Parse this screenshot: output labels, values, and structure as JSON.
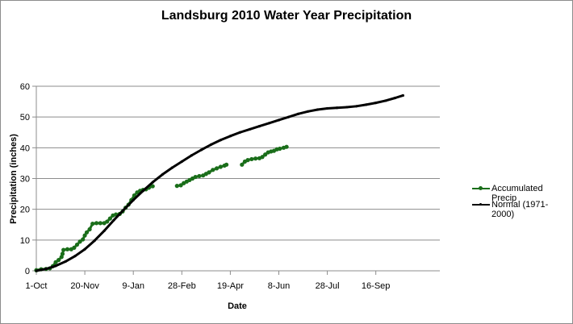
{
  "chart_data": {
    "type": "line",
    "title": "Landsburg 2010 Water Year Precipitation",
    "xlabel": "Date",
    "ylabel": "Precipitation (inches)",
    "x_unit": "days since 1-Oct",
    "xlim": [
      0,
      416
    ],
    "ylim": [
      0,
      60
    ],
    "x_ticks": [
      {
        "label": "1-Oct",
        "day": 0
      },
      {
        "label": "20-Nov",
        "day": 50
      },
      {
        "label": "9-Jan",
        "day": 100
      },
      {
        "label": "28-Feb",
        "day": 150
      },
      {
        "label": "19-Apr",
        "day": 200
      },
      {
        "label": "8-Jun",
        "day": 250
      },
      {
        "label": "28-Jul",
        "day": 300
      },
      {
        "label": "16-Sep",
        "day": 350
      }
    ],
    "y_ticks": [
      0,
      10,
      20,
      30,
      40,
      50,
      60
    ],
    "grid": "horizontal",
    "legend_position": "right",
    "series": [
      {
        "name": "Accumulated Precip",
        "color": "#1a6e1a",
        "segments": [
          [
            [
              0,
              0.2
            ],
            [
              5,
              0.5
            ],
            [
              10,
              0.6
            ],
            [
              14,
              0.8
            ],
            [
              17,
              1.5
            ],
            [
              20,
              2.8
            ],
            [
              23,
              3.5
            ],
            [
              26,
              4.5
            ],
            [
              27,
              5.5
            ],
            [
              28,
              6.8
            ],
            [
              32,
              7.0
            ],
            [
              36,
              7.0
            ],
            [
              39,
              7.5
            ],
            [
              42,
              8.5
            ],
            [
              45,
              9.5
            ],
            [
              48,
              10.2
            ],
            [
              50,
              11.5
            ],
            [
              52,
              12.5
            ],
            [
              55,
              13.5
            ],
            [
              58,
              15.3
            ],
            [
              62,
              15.5
            ],
            [
              66,
              15.5
            ],
            [
              70,
              15.5
            ],
            [
              73,
              16.0
            ],
            [
              76,
              17.0
            ],
            [
              79,
              18.0
            ],
            [
              82,
              18.3
            ],
            [
              86,
              18.5
            ],
            [
              89,
              19.3
            ],
            [
              92,
              20.5
            ],
            [
              95,
              21.5
            ],
            [
              98,
              23.0
            ],
            [
              101,
              24.5
            ],
            [
              104,
              25.5
            ],
            [
              107,
              26.0
            ],
            [
              110,
              26.3
            ],
            [
              113,
              26.5
            ],
            [
              116,
              27.0
            ],
            [
              120,
              27.5
            ]
          ],
          [
            [
              145,
              27.6
            ],
            [
              149,
              27.8
            ],
            [
              152,
              28.5
            ],
            [
              155,
              29.0
            ],
            [
              158,
              29.5
            ],
            [
              161,
              30.0
            ],
            [
              164,
              30.5
            ],
            [
              168,
              30.8
            ],
            [
              172,
              31.0
            ],
            [
              175,
              31.5
            ]
          ],
          [
            [
              178,
              32.0
            ],
            [
              182,
              32.8
            ],
            [
              186,
              33.3
            ],
            [
              190,
              33.8
            ],
            [
              194,
              34.2
            ],
            [
              196,
              34.5
            ]
          ],
          [
            [
              212,
              34.5
            ],
            [
              215,
              35.5
            ],
            [
              218,
              36.0
            ],
            [
              222,
              36.3
            ],
            [
              226,
              36.5
            ],
            [
              230,
              36.6
            ],
            [
              233,
              37.0
            ],
            [
              236,
              37.8
            ],
            [
              239,
              38.5
            ],
            [
              242,
              38.8
            ],
            [
              245,
              39.0
            ]
          ],
          [
            [
              248,
              39.5
            ],
            [
              251,
              39.7
            ],
            [
              255,
              40.0
            ],
            [
              258,
              40.3
            ]
          ]
        ]
      },
      {
        "name": "Normal (1971-2000)",
        "color": "#000000",
        "segments": [
          [
            [
              0,
              0
            ],
            [
              10,
              0.6
            ],
            [
              20,
              1.6
            ],
            [
              30,
              3.0
            ],
            [
              40,
              4.8
            ],
            [
              50,
              7.0
            ],
            [
              60,
              9.8
            ],
            [
              70,
              13.0
            ],
            [
              80,
              16.5
            ],
            [
              90,
              19.8
            ],
            [
              100,
              23.0
            ],
            [
              110,
              26.0
            ],
            [
              120,
              28.8
            ],
            [
              130,
              31.3
            ],
            [
              140,
              33.5
            ],
            [
              150,
              35.5
            ],
            [
              160,
              37.5
            ],
            [
              170,
              39.3
            ],
            [
              180,
              41.0
            ],
            [
              190,
              42.5
            ],
            [
              200,
              43.8
            ],
            [
              210,
              45.0
            ],
            [
              220,
              46.0
            ],
            [
              230,
              47.0
            ],
            [
              240,
              48.0
            ],
            [
              250,
              49.0
            ],
            [
              260,
              50.0
            ],
            [
              270,
              51.0
            ],
            [
              280,
              51.8
            ],
            [
              290,
              52.4
            ],
            [
              300,
              52.8
            ],
            [
              310,
              53.0
            ],
            [
              320,
              53.2
            ],
            [
              330,
              53.5
            ],
            [
              340,
              54.0
            ],
            [
              350,
              54.6
            ],
            [
              360,
              55.3
            ],
            [
              370,
              56.2
            ],
            [
              378,
              57.0
            ]
          ]
        ]
      }
    ]
  }
}
